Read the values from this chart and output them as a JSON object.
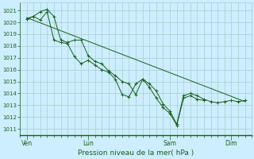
{
  "xlabel": "Pression niveau de la mer( hPa )",
  "bg_color": "#cceeff",
  "grid_color": "#aacccc",
  "line_color": "#1a5e1a",
  "marker_color": "#1a5e1a",
  "ylim_min": 1010.5,
  "ylim_max": 1021.7,
  "yticks": [
    1011,
    1012,
    1013,
    1014,
    1015,
    1016,
    1017,
    1018,
    1019,
    1020,
    1021
  ],
  "day_labels": [
    "Ven",
    "Lun",
    "Sam",
    "Dim"
  ],
  "day_positions": [
    0,
    72,
    168,
    240
  ],
  "xmin": -8,
  "xmax": 264,
  "series1_x": [
    0,
    8,
    16,
    24,
    32,
    40,
    48,
    56,
    64,
    72,
    80,
    88,
    96,
    104,
    112,
    120,
    128,
    136,
    144,
    152,
    160,
    168,
    176,
    184,
    192,
    200,
    208,
    216,
    224,
    232,
    240,
    248,
    256
  ],
  "series1_y": [
    1020.3,
    1020.5,
    1020.9,
    1021.1,
    1020.5,
    1018.5,
    1018.3,
    1018.5,
    1018.5,
    1017.2,
    1016.7,
    1016.5,
    1015.9,
    1015.5,
    1015.0,
    1014.8,
    1013.9,
    1015.2,
    1014.8,
    1014.2,
    1013.1,
    1012.5,
    1011.4,
    1013.8,
    1014.0,
    1013.8,
    1013.5,
    1013.3,
    1013.2,
    1013.3,
    1013.4,
    1013.3,
    1013.4
  ],
  "series2_x": [
    0,
    8,
    16,
    24,
    32,
    40,
    48,
    56,
    64,
    72,
    80,
    88,
    96,
    104,
    112,
    120,
    128,
    136,
    144,
    152,
    160,
    168,
    176,
    184,
    192,
    200,
    208
  ],
  "series2_y": [
    1020.3,
    1020.5,
    1020.2,
    1020.9,
    1018.5,
    1018.3,
    1018.2,
    1017.1,
    1016.5,
    1016.8,
    1016.4,
    1016.0,
    1015.8,
    1015.2,
    1013.9,
    1013.7,
    1014.8,
    1015.2,
    1014.5,
    1013.6,
    1012.8,
    1012.3,
    1011.3,
    1013.6,
    1013.8,
    1013.5,
    1013.4
  ],
  "trend_x": [
    0,
    256
  ],
  "trend_y": [
    1020.4,
    1013.3
  ]
}
